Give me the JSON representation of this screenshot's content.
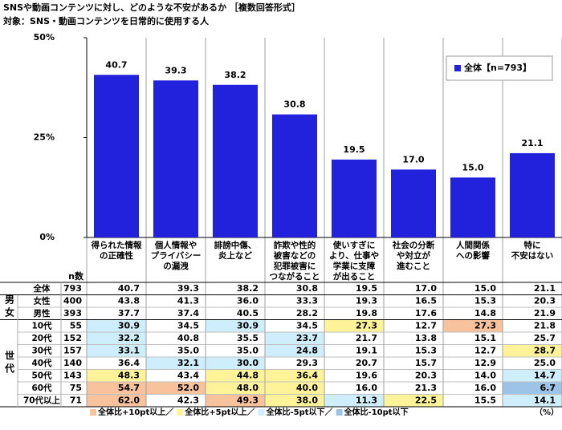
{
  "title": "SNSや動画コンテンツに対し、どのような不安があるか ［複数回答形式］",
  "subtitle": "対象：SNS・動画コンテンツを日常的に使用する人",
  "chart_data": {
    "type": "bar",
    "categories": [
      [
        "得られた情報",
        "の正確性"
      ],
      [
        "個人情報や",
        "プライバシー",
        "の漏洩"
      ],
      [
        "誹謗中傷、",
        "炎上など"
      ],
      [
        "詐欺や性的",
        "被害などの",
        "犯罪被害に",
        "つながること"
      ],
      [
        "使いすぎに",
        "より、仕事や",
        "学業に支障",
        "が出ること"
      ],
      [
        "社会の分断",
        "や対立が",
        "進むこと"
      ],
      [
        "人間関係",
        "への影響"
      ],
      [
        "特に",
        "不安はない"
      ]
    ],
    "series": [
      {
        "name": "全体【n=793】",
        "color": "#2222dd",
        "values": [
          40.7,
          39.3,
          38.2,
          30.8,
          19.5,
          17.0,
          15.0,
          21.1
        ],
        "value_labels": [
          "40.7",
          "39.3",
          "38.2",
          "30.8",
          "19.5",
          "17.0",
          "15.0",
          "21.1"
        ]
      }
    ],
    "ylim": [
      0,
      50
    ],
    "yticks": [
      {
        "value": 0,
        "label": "0%"
      },
      {
        "value": 25,
        "label": "25%"
      },
      {
        "value": 50,
        "label": "50%"
      }
    ],
    "legend": "top-right"
  },
  "table": {
    "n_header": "n数",
    "sections": [
      {
        "rows": [
          {
            "label": "全体",
            "n": 793,
            "cells": [
              "40.7",
              "39.3",
              "38.2",
              "30.8",
              "19.5",
              "17.0",
              "15.0",
              "21.1"
            ],
            "colors": [
              null,
              null,
              null,
              null,
              null,
              null,
              null,
              null
            ]
          }
        ]
      },
      {
        "label": "男女",
        "rows": [
          {
            "label": "女性",
            "n": 400,
            "cells": [
              "43.8",
              "41.3",
              "36.0",
              "33.3",
              "19.3",
              "16.5",
              "15.3",
              "20.3"
            ],
            "colors": [
              null,
              null,
              null,
              null,
              null,
              null,
              null,
              null
            ]
          },
          {
            "label": "男性",
            "n": 393,
            "cells": [
              "37.7",
              "37.4",
              "40.5",
              "28.2",
              "19.8",
              "17.6",
              "14.8",
              "21.9"
            ],
            "colors": [
              null,
              null,
              null,
              null,
              null,
              null,
              null,
              null
            ]
          }
        ]
      },
      {
        "label": "世代",
        "rows": [
          {
            "label": "10代",
            "n": 55,
            "cells": [
              "30.9",
              "34.5",
              "30.9",
              "34.5",
              "27.3",
              "12.7",
              "27.3",
              "21.8"
            ],
            "colors": [
              "#cdeefa",
              null,
              "#cdeefa",
              null,
              "#fff39a",
              null,
              "#f8c29c",
              null
            ]
          },
          {
            "label": "20代",
            "n": 152,
            "cells": [
              "32.2",
              "40.8",
              "35.5",
              "23.7",
              "21.7",
              "13.8",
              "15.1",
              "25.7"
            ],
            "colors": [
              "#cdeefa",
              null,
              null,
              "#cdeefa",
              null,
              null,
              null,
              null
            ]
          },
          {
            "label": "30代",
            "n": 157,
            "cells": [
              "33.1",
              "35.0",
              "35.0",
              "24.8",
              "19.1",
              "15.3",
              "12.7",
              "28.7"
            ],
            "colors": [
              "#cdeefa",
              null,
              null,
              "#cdeefa",
              null,
              null,
              null,
              "#fff39a"
            ]
          },
          {
            "label": "40代",
            "n": 140,
            "cells": [
              "36.4",
              "32.1",
              "30.0",
              "29.3",
              "20.7",
              "15.7",
              "12.9",
              "25.0"
            ],
            "colors": [
              null,
              "#cdeefa",
              "#cdeefa",
              null,
              null,
              null,
              null,
              null
            ]
          },
          {
            "label": "50代",
            "n": 143,
            "cells": [
              "48.3",
              "43.4",
              "44.8",
              "36.4",
              "19.6",
              "20.3",
              "14.0",
              "14.7"
            ],
            "colors": [
              "#fff39a",
              null,
              "#fff39a",
              "#fff39a",
              null,
              null,
              null,
              "#cdeefa"
            ]
          },
          {
            "label": "60代",
            "n": 75,
            "cells": [
              "54.7",
              "52.0",
              "48.0",
              "40.0",
              "16.0",
              "21.3",
              "16.0",
              "6.7"
            ],
            "colors": [
              "#f8c29c",
              "#f8c29c",
              "#fff39a",
              "#fff39a",
              null,
              null,
              null,
              "#9dc3e6"
            ]
          },
          {
            "label": "70代以上",
            "n": 71,
            "cells": [
              "62.0",
              "42.3",
              "49.3",
              "38.0",
              "11.3",
              "22.5",
              "15.5",
              "14.1"
            ],
            "colors": [
              "#f8c29c",
              null,
              "#f8c29c",
              "#fff39a",
              "#cdeefa",
              "#fff39a",
              null,
              "#cdeefa"
            ]
          }
        ]
      }
    ],
    "highlight_legend": [
      {
        "label": "全体比+10pt以上／",
        "color": "#f8c29c"
      },
      {
        "label": "全体比+5pt以上／",
        "color": "#fff39a"
      },
      {
        "label": "全体比-5pt以下／",
        "color": "#cdeefa"
      },
      {
        "label": "全体比-10pt以下",
        "color": "#9dc3e6"
      }
    ],
    "unit": "（%）"
  }
}
